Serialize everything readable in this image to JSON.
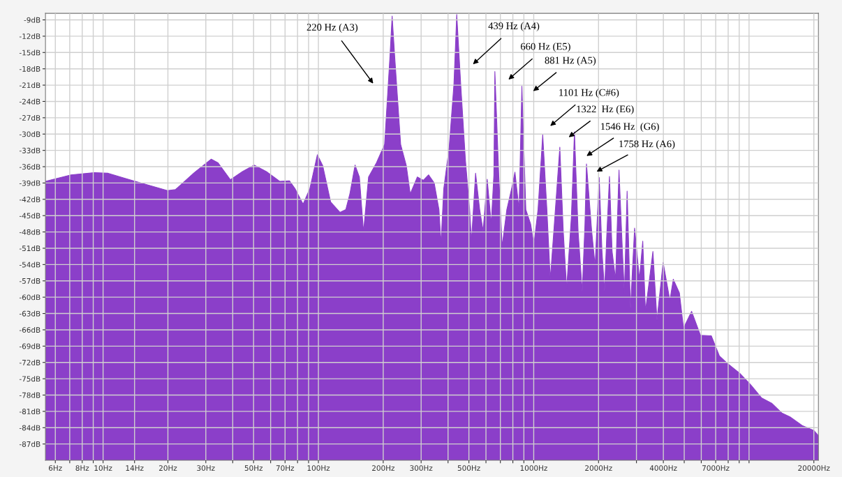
{
  "chart_data": {
    "type": "area",
    "color": "#8b3fc9",
    "grid": true,
    "xlim": [
      5.4,
      21000
    ],
    "ylim": [
      -90,
      -7.8
    ],
    "log": "x",
    "xticks": [
      {
        "value": 6,
        "label": "6Hz"
      },
      {
        "value": 7,
        "label": null
      },
      {
        "value": 8,
        "label": "8Hz"
      },
      {
        "value": 9,
        "label": null
      },
      {
        "value": 10,
        "label": "10Hz"
      },
      {
        "value": 14,
        "label": "14Hz"
      },
      {
        "value": 20,
        "label": "20Hz"
      },
      {
        "value": 30,
        "label": "30Hz"
      },
      {
        "value": 40,
        "label": null
      },
      {
        "value": 50,
        "label": "50Hz"
      },
      {
        "value": 60,
        "label": null
      },
      {
        "value": 70,
        "label": "70Hz"
      },
      {
        "value": 80,
        "label": null
      },
      {
        "value": 90,
        "label": null
      },
      {
        "value": 100,
        "label": "100Hz"
      },
      {
        "value": 200,
        "label": "200Hz"
      },
      {
        "value": 300,
        "label": "300Hz"
      },
      {
        "value": 400,
        "label": null
      },
      {
        "value": 500,
        "label": "500Hz"
      },
      {
        "value": 600,
        "label": null
      },
      {
        "value": 700,
        "label": null
      },
      {
        "value": 800,
        "label": null
      },
      {
        "value": 900,
        "label": null
      },
      {
        "value": 1000,
        "label": "1000Hz"
      },
      {
        "value": 2000,
        "label": "2000Hz"
      },
      {
        "value": 3000,
        "label": null
      },
      {
        "value": 4000,
        "label": "4000Hz"
      },
      {
        "value": 5000,
        "label": null
      },
      {
        "value": 6000,
        "label": null
      },
      {
        "value": 7000,
        "label": "7000Hz"
      },
      {
        "value": 8000,
        "label": null
      },
      {
        "value": 9000,
        "label": null
      },
      {
        "value": 10000,
        "label": null
      },
      {
        "value": 20000,
        "label": "20000Hz"
      }
    ],
    "yticks": [
      {
        "value": -87,
        "label": "-87dB"
      },
      {
        "value": -84,
        "label": "-84dB"
      },
      {
        "value": -81,
        "label": "-81dB"
      },
      {
        "value": -78,
        "label": "-78dB"
      },
      {
        "value": -75,
        "label": "-75dB"
      },
      {
        "value": -72,
        "label": "-72dB"
      },
      {
        "value": -69,
        "label": "-69dB"
      },
      {
        "value": -66,
        "label": "-66dB"
      },
      {
        "value": -63,
        "label": "-63dB"
      },
      {
        "value": -60,
        "label": "-60dB"
      },
      {
        "value": -57,
        "label": "-57dB"
      },
      {
        "value": -54,
        "label": "-54dB"
      },
      {
        "value": -51,
        "label": "-51dB"
      },
      {
        "value": -48,
        "label": "-48dB"
      },
      {
        "value": -45,
        "label": "-45dB"
      },
      {
        "value": -42,
        "label": "-42dB"
      },
      {
        "value": -39,
        "label": "-39dB"
      },
      {
        "value": -36,
        "label": "-36dB"
      },
      {
        "value": -33,
        "label": "-33dB"
      },
      {
        "value": -30,
        "label": "-30dB"
      },
      {
        "value": -27,
        "label": "-27dB"
      },
      {
        "value": -24,
        "label": "-24dB"
      },
      {
        "value": -21,
        "label": "-21dB"
      },
      {
        "value": -18,
        "label": "-18dB"
      },
      {
        "value": -15,
        "label": "-15dB"
      },
      {
        "value": -12,
        "label": "-12dB"
      },
      {
        "value": -9,
        "label": "-9dB"
      }
    ],
    "x": [
      5.4,
      7.1,
      9.1,
      10.5,
      14.1,
      19.9,
      21.7,
      26.5,
      31.8,
      34.2,
      39,
      44.4,
      50.3,
      57.3,
      66.2,
      73.4,
      77.8,
      84.9,
      91.3,
      98.9,
      104.7,
      114,
      126,
      134,
      140,
      148,
      155,
      162,
      171,
      186,
      203,
      215,
      220,
      226,
      241,
      256,
      267,
      288,
      307,
      325,
      345,
      363,
      371,
      382,
      405,
      426,
      439,
      458,
      482,
      504,
      514,
      537,
      561,
      582,
      608,
      635,
      653,
      660,
      688,
      713,
      750,
      789,
      818,
      855,
      881,
      919,
      967,
      1002,
      1047,
      1101,
      1151,
      1194,
      1247,
      1322,
      1371,
      1422,
      1496,
      1546,
      1607,
      1680,
      1730,
      1758,
      1858,
      1928,
      2014,
      2075,
      2133,
      2182,
      2248,
      2312,
      2399,
      2489,
      2582,
      2637,
      2715,
      2814,
      2941,
      3097,
      3209,
      3304,
      3577,
      3736,
      3990,
      4290,
      4448,
      4748,
      4961,
      5410,
      5945,
      6678,
      7282,
      7889,
      9060,
      10170,
      11420,
      12740,
      14200,
      15490,
      17660,
      19990,
      21000
    ],
    "values": [
      -38.7,
      -37.5,
      -37.1,
      -37.2,
      -38.7,
      -40.4,
      -40.2,
      -37.1,
      -34.6,
      -35.3,
      -38.4,
      -36.9,
      -35.7,
      -36.9,
      -38.7,
      -38.6,
      -40,
      -42.9,
      -40,
      -33.8,
      -35.8,
      -42.5,
      -44.4,
      -43.9,
      -41,
      -35.7,
      -37.9,
      -48,
      -37.9,
      -35.3,
      -31.9,
      -15.6,
      -8.3,
      -15.6,
      -31.9,
      -35.8,
      -41,
      -37.9,
      -38.5,
      -37.5,
      -39,
      -43.9,
      -50.2,
      -40.1,
      -32.4,
      -20.8,
      -8,
      -20.8,
      -34.9,
      -43.9,
      -49.7,
      -37.2,
      -43.9,
      -47.8,
      -38.3,
      -46.5,
      -37.5,
      -18.5,
      -37.5,
      -50.7,
      -43.9,
      -40.1,
      -37,
      -43.9,
      -21.2,
      -43.9,
      -46.5,
      -50.3,
      -43.9,
      -30.1,
      -43.9,
      -56.7,
      -46.5,
      -32.4,
      -47.8,
      -58.4,
      -45.2,
      -29.6,
      -47.8,
      -59,
      -46.5,
      -35.5,
      -47.8,
      -54.2,
      -38,
      -51.6,
      -58.9,
      -49,
      -37.8,
      -51.6,
      -56.7,
      -36.6,
      -51.6,
      -59.3,
      -40.5,
      -62.1,
      -47.3,
      -56.7,
      -49.7,
      -62.6,
      -51.6,
      -64.2,
      -53.6,
      -60.6,
      -56.7,
      -59.2,
      -65.7,
      -62.6,
      -67,
      -67.1,
      -70.8,
      -72.1,
      -74,
      -76.1,
      -78.5,
      -79.5,
      -81.3,
      -82,
      -83.6,
      -84.5,
      -85.5
    ],
    "annotations": [
      "220 Hz (A3)",
      "439 Hz (A4)",
      "660 Hz (E5)",
      "881 Hz (A5)",
      "1101 Hz (C#6)",
      "1322  Hz (E6)",
      "1546 Hz  (G6)",
      "1758 Hz (A6)"
    ]
  }
}
